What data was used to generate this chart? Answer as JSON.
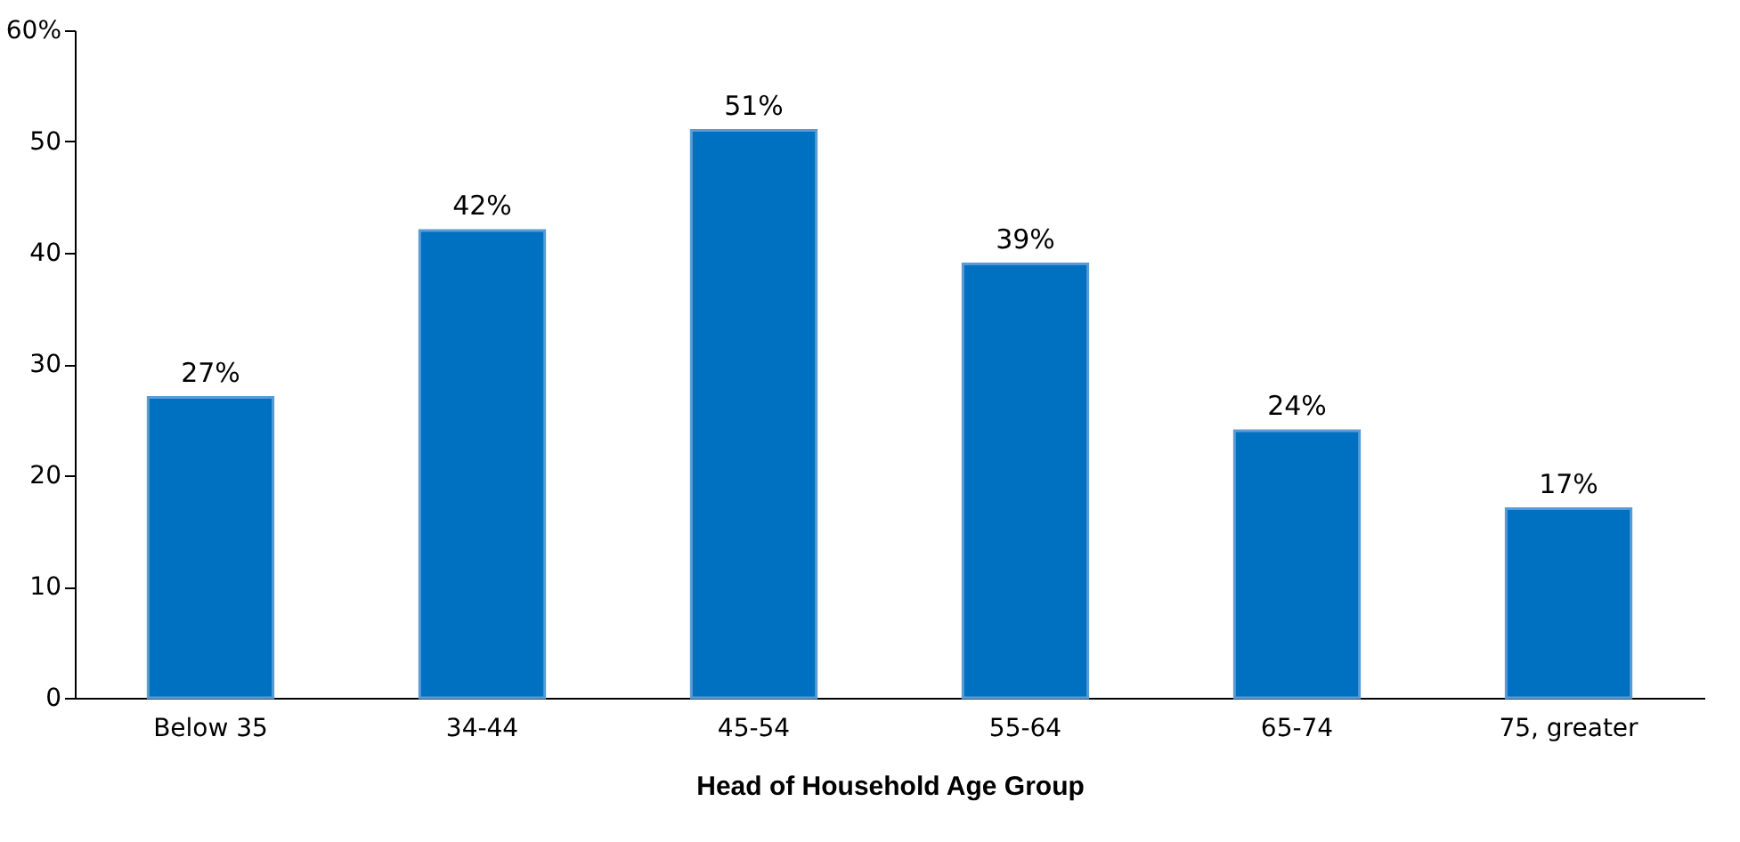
{
  "chart_data": {
    "type": "bar",
    "xlabel": "Head of Household Age Group",
    "categories": [
      "Below 35",
      "34-44",
      "45-54",
      "55-64",
      "65-74",
      "75, greater"
    ],
    "values": [
      27,
      42,
      51,
      39,
      24,
      17
    ],
    "value_labels": [
      "27%",
      "42%",
      "51%",
      "39%",
      "24%",
      "17%"
    ],
    "color": "#0070c0",
    "ylim": [
      0,
      60
    ],
    "yticks": [
      0,
      10,
      20,
      30,
      40,
      50,
      {
        "value": 60,
        "label": "60%"
      }
    ],
    "grid": false
  }
}
